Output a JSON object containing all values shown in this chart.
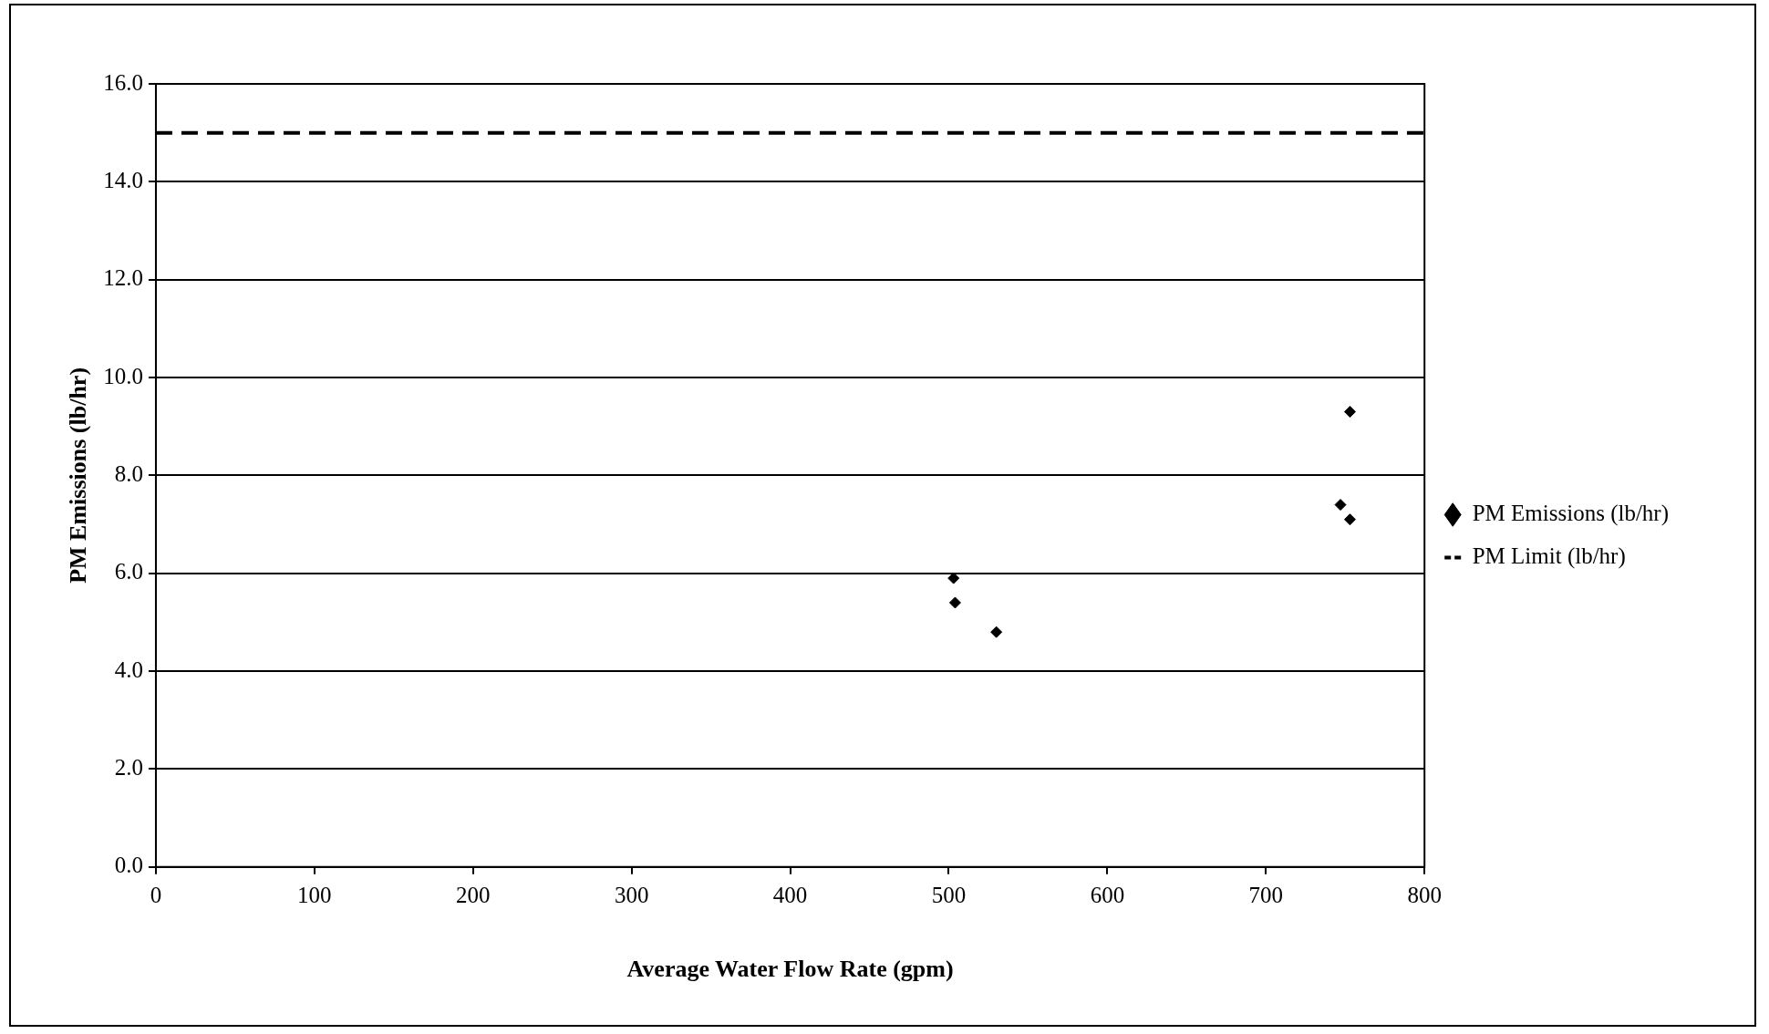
{
  "chart_data": {
    "type": "scatter",
    "xlabel": "Average Water Flow Rate (gpm)",
    "ylabel": "PM Emissions (lb/hr)",
    "xlim": [
      0,
      800
    ],
    "xticks": [
      0,
      100,
      200,
      300,
      400,
      500,
      600,
      700,
      800
    ],
    "ylim": [
      0,
      16
    ],
    "yticks": [
      {
        "value": 0,
        "label": "0.0"
      },
      {
        "value": 2,
        "label": "2.0"
      },
      {
        "value": 4,
        "label": "4.0"
      },
      {
        "value": 6,
        "label": "6.0"
      },
      {
        "value": 8,
        "label": "8.0"
      },
      {
        "value": 10,
        "label": "10.0"
      },
      {
        "value": 12,
        "label": "12.0"
      },
      {
        "value": 14,
        "label": "14.0"
      },
      {
        "value": 16,
        "label": "16.0"
      }
    ],
    "grid": "y",
    "legend": "right",
    "series": [
      {
        "name": "PM Emissions (lb/hr)",
        "type": "scatter",
        "color": "#000000",
        "marker": "diamond",
        "x": [
          503,
          504,
          530,
          747,
          753,
          753
        ],
        "values": [
          5.9,
          5.4,
          4.8,
          7.4,
          7.1,
          9.3
        ]
      },
      {
        "name": "PM Limit (lb/hr)",
        "type": "line",
        "color": "#000000",
        "line_style": "dashed",
        "marker": "none",
        "x": [
          0,
          800
        ],
        "values": [
          15,
          15
        ]
      }
    ]
  }
}
